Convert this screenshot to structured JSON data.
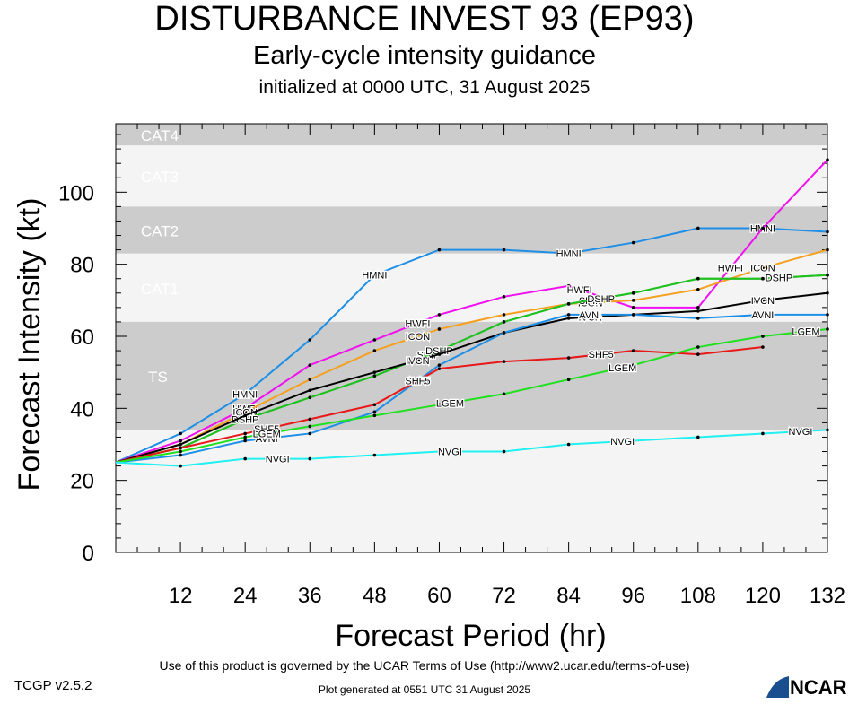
{
  "header": {
    "title": "DISTURBANCE INVEST 93 (EP93)",
    "subtitle": "Early-cycle intensity guidance",
    "init": "initialized at 0000 UTC, 31 August 2025"
  },
  "footer": {
    "credit": "Use of this product is governed by the UCAR Terms of Use (http://www2.ucar.edu/terms-of-use)",
    "version": "TCGP v2.5.2",
    "generated": "Plot generated at 0551 UTC   31 August 2025",
    "logo_text": "NCAR"
  },
  "chart_data": {
    "type": "line",
    "title": "DISTURBANCE INVEST 93 (EP93)",
    "subtitle": "Early-cycle intensity guidance",
    "xlabel": "Forecast Period (hr)",
    "ylabel": "Forecast Intensity (kt)",
    "xlim": [
      0,
      132
    ],
    "ylim": [
      0,
      119
    ],
    "xticks": [
      12,
      24,
      36,
      48,
      60,
      72,
      84,
      96,
      108,
      120,
      132
    ],
    "yticks": [
      0,
      20,
      40,
      60,
      80,
      100
    ],
    "bands": [
      {
        "name": "TS",
        "from": 34,
        "to": 64,
        "shade": "dark"
      },
      {
        "name": "CAT1",
        "from": 64,
        "to": 83,
        "shade": "light"
      },
      {
        "name": "CAT2",
        "from": 83,
        "to": 96,
        "shade": "dark"
      },
      {
        "name": "CAT3",
        "from": 96,
        "to": 113,
        "shade": "light"
      },
      {
        "name": "CAT4",
        "from": 113,
        "to": 137,
        "shade": "dark"
      }
    ],
    "series": [
      {
        "name": "HMNI",
        "color": "#1e8fe6",
        "x": [
          0,
          12,
          24,
          36,
          48,
          60,
          72,
          84,
          96,
          108,
          120,
          132
        ],
        "y": [
          25,
          33,
          44,
          59,
          77,
          84,
          84,
          83,
          86,
          90,
          90,
          89
        ],
        "labels_at": [
          24,
          48,
          84,
          120
        ]
      },
      {
        "name": "HWFI",
        "color": "#f010f0",
        "x": [
          0,
          12,
          24,
          36,
          48,
          60,
          72,
          84,
          96,
          108,
          120,
          132
        ],
        "y": [
          25,
          31,
          40,
          52,
          59,
          66,
          71,
          74,
          68,
          68,
          90,
          109
        ],
        "labels_at": [
          24,
          56,
          86,
          114
        ]
      },
      {
        "name": "ICON",
        "color": "#f5a020",
        "x": [
          0,
          12,
          24,
          36,
          48,
          60,
          72,
          84,
          96,
          108,
          120,
          132
        ],
        "y": [
          25,
          30,
          39,
          48,
          56,
          62,
          66,
          69,
          70,
          73,
          79,
          84
        ],
        "labels_at": [
          24,
          56,
          88,
          120
        ]
      },
      {
        "name": "SHIP",
        "color": "#20c020",
        "x": [
          0,
          12,
          24,
          36,
          48,
          60,
          72,
          84,
          96,
          108,
          120,
          132
        ],
        "y": [
          25,
          29,
          37,
          43,
          49,
          56,
          64,
          69,
          72,
          76,
          76,
          77
        ],
        "labels_at": [
          24,
          58,
          88
        ]
      },
      {
        "name": "DSHP",
        "color": "#20c020",
        "x": [
          0,
          12,
          24,
          36,
          48,
          60,
          72,
          84,
          96,
          108,
          120,
          132
        ],
        "y": [
          25,
          29,
          37,
          43,
          49,
          56,
          64,
          69,
          72,
          76,
          76,
          77
        ],
        "labels_at": [
          24,
          60,
          90,
          123
        ]
      },
      {
        "name": "IVCN",
        "color": "#000000",
        "x": [
          0,
          12,
          24,
          36,
          48,
          60,
          72,
          84,
          96,
          108,
          120,
          132
        ],
        "y": [
          25,
          30,
          38,
          45,
          50,
          55,
          61,
          65,
          66,
          67,
          70,
          72
        ],
        "labels_at": [
          56,
          88,
          120
        ]
      },
      {
        "name": "AVNI",
        "color": "#1e8fe6",
        "x": [
          0,
          12,
          24,
          36,
          48,
          60,
          72,
          84,
          96,
          108,
          120,
          132
        ],
        "y": [
          25,
          27,
          31,
          33,
          39,
          52,
          61,
          66,
          66,
          65,
          66,
          66
        ],
        "labels_at": [
          28,
          56,
          88,
          120
        ]
      },
      {
        "name": "SHF5",
        "color": "#e81818",
        "x": [
          0,
          12,
          24,
          36,
          48,
          60,
          72,
          84,
          96,
          108,
          120
        ],
        "y": [
          25,
          29,
          33,
          37,
          41,
          51,
          53,
          54,
          56,
          55,
          57
        ],
        "labels_at": [
          28,
          56,
          90
        ]
      },
      {
        "name": "LGEM",
        "color": "#20e020",
        "x": [
          0,
          12,
          24,
          36,
          48,
          60,
          72,
          84,
          96,
          108,
          120,
          132
        ],
        "y": [
          25,
          28,
          32,
          35,
          38,
          41,
          44,
          48,
          52,
          57,
          60,
          62
        ],
        "labels_at": [
          28,
          62,
          94,
          128
        ]
      },
      {
        "name": "NVGI",
        "color": "#20f0f0",
        "x": [
          0,
          12,
          24,
          36,
          48,
          60,
          72,
          84,
          96,
          108,
          120,
          132
        ],
        "y": [
          25,
          24,
          26,
          26,
          27,
          28,
          28,
          30,
          31,
          32,
          33,
          34
        ],
        "labels_at": [
          30,
          62,
          94,
          127
        ]
      }
    ]
  }
}
